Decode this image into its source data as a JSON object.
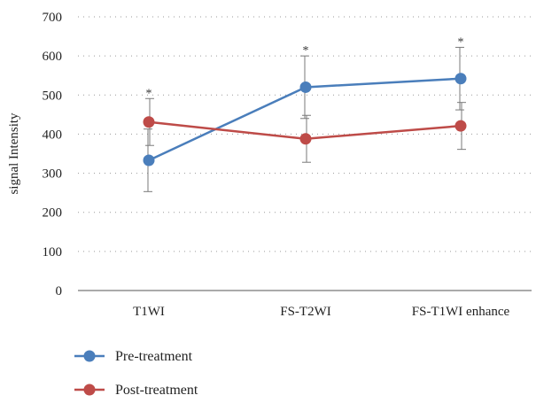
{
  "chart_data": {
    "type": "line",
    "categories": [
      "T1WI",
      "FS-T2WI",
      "FS-T1WI enhance"
    ],
    "ylabel": "signal Intensity",
    "ylim": [
      0,
      700
    ],
    "yticks": [
      0,
      100,
      200,
      300,
      400,
      500,
      600,
      700
    ],
    "grid": "horizontal-dotted",
    "legend": "bottom-left",
    "series": [
      {
        "name": "Pre-treatment",
        "color": "#4a7ebb",
        "values": [
          333,
          520,
          542
        ],
        "error": [
          80,
          80,
          80
        ]
      },
      {
        "name": "Post-treatment",
        "color": "#be4b48",
        "values": [
          431,
          388,
          421
        ],
        "error": [
          60,
          60,
          60
        ]
      }
    ],
    "annotations": [
      {
        "category": "T1WI",
        "text": "*"
      },
      {
        "category": "FS-T2WI",
        "text": "*"
      },
      {
        "category": "FS-T1WI enhance",
        "text": "*"
      }
    ]
  }
}
